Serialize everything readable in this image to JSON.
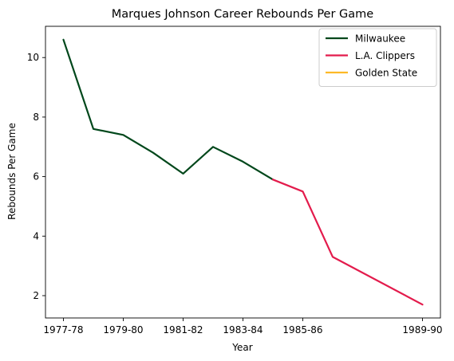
{
  "chart_data": {
    "type": "line",
    "title": "Marques Johnson Career Rebounds Per Game",
    "xlabel": "Year",
    "ylabel": "Rebounds Per Game",
    "x": [
      "1977-78",
      "1978-79",
      "1979-80",
      "1980-81",
      "1981-82",
      "1982-83",
      "1983-84",
      "1984-85",
      "1985-86",
      "1986-87",
      "1989-90"
    ],
    "x_tick_labels": [
      "1977-78",
      "1979-80",
      "1981-82",
      "1983-84",
      "1985-86",
      "1989-90"
    ],
    "y_ticks": [
      2,
      4,
      6,
      8,
      10
    ],
    "ylim": [
      1.25,
      11.05
    ],
    "grid": false,
    "legend_position": "top-right",
    "series": [
      {
        "name": "Milwaukee",
        "color": "#00471b",
        "points": [
          {
            "x": "1977-78",
            "y": 10.6
          },
          {
            "x": "1978-79",
            "y": 7.6
          },
          {
            "x": "1979-80",
            "y": 7.4
          },
          {
            "x": "1980-81",
            "y": 6.8
          },
          {
            "x": "1981-82",
            "y": 6.1
          },
          {
            "x": "1982-83",
            "y": 7.0
          },
          {
            "x": "1983-84",
            "y": 6.5
          },
          {
            "x": "1984-85",
            "y": 5.9
          }
        ]
      },
      {
        "name": "L.A. Clippers",
        "color": "#e31b4c",
        "points": [
          {
            "x": "1984-85",
            "y": 5.9
          },
          {
            "x": "1985-86",
            "y": 5.5
          },
          {
            "x": "1986-87",
            "y": 3.3
          },
          {
            "x": "1989-90",
            "y": 1.7
          }
        ]
      },
      {
        "name": "Golden State",
        "color": "#fdb927",
        "points": []
      }
    ]
  }
}
